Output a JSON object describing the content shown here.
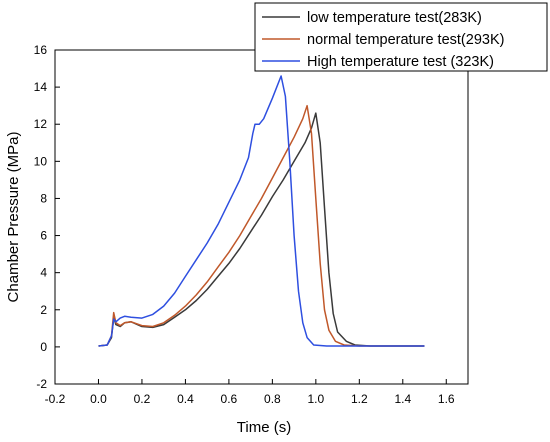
{
  "chart_data": {
    "type": "line",
    "xlabel": "Time (s)",
    "ylabel": "Chamber Pressure (MPa)",
    "xlim": [
      -0.2,
      1.7
    ],
    "ylim": [
      -2,
      16
    ],
    "x_ticks": [
      "-0.2",
      "0.0",
      "0.2",
      "0.4",
      "0.6",
      "0.8",
      "1.0",
      "1.2",
      "1.4",
      "1.6"
    ],
    "y_ticks": [
      "-2",
      "0",
      "2",
      "4",
      "6",
      "8",
      "10",
      "12",
      "14",
      "16"
    ],
    "legend_position": "top-right",
    "grid": false,
    "series": [
      {
        "name": "low temperature test(283K)",
        "color": "#3a3a3a",
        "points": [
          [
            0.0,
            0.05
          ],
          [
            0.04,
            0.1
          ],
          [
            0.06,
            0.5
          ],
          [
            0.07,
            1.6
          ],
          [
            0.08,
            1.2
          ],
          [
            0.1,
            1.1
          ],
          [
            0.12,
            1.3
          ],
          [
            0.15,
            1.35
          ],
          [
            0.2,
            1.1
          ],
          [
            0.25,
            1.05
          ],
          [
            0.3,
            1.2
          ],
          [
            0.35,
            1.6
          ],
          [
            0.4,
            2.0
          ],
          [
            0.45,
            2.5
          ],
          [
            0.5,
            3.1
          ],
          [
            0.55,
            3.8
          ],
          [
            0.6,
            4.5
          ],
          [
            0.65,
            5.3
          ],
          [
            0.7,
            6.2
          ],
          [
            0.75,
            7.1
          ],
          [
            0.8,
            8.1
          ],
          [
            0.85,
            9.0
          ],
          [
            0.9,
            10.0
          ],
          [
            0.95,
            11.0
          ],
          [
            0.98,
            11.8
          ],
          [
            1.0,
            12.6
          ],
          [
            1.02,
            11.0
          ],
          [
            1.04,
            7.5
          ],
          [
            1.06,
            4.0
          ],
          [
            1.08,
            1.8
          ],
          [
            1.1,
            0.8
          ],
          [
            1.14,
            0.3
          ],
          [
            1.18,
            0.1
          ],
          [
            1.25,
            0.05
          ],
          [
            1.5,
            0.05
          ]
        ]
      },
      {
        "name": "normal temperature test(293K)",
        "color": "#c0582a",
        "points": [
          [
            0.0,
            0.05
          ],
          [
            0.04,
            0.1
          ],
          [
            0.06,
            0.6
          ],
          [
            0.07,
            1.85
          ],
          [
            0.08,
            1.3
          ],
          [
            0.1,
            1.15
          ],
          [
            0.12,
            1.3
          ],
          [
            0.15,
            1.35
          ],
          [
            0.2,
            1.15
          ],
          [
            0.25,
            1.1
          ],
          [
            0.3,
            1.3
          ],
          [
            0.35,
            1.7
          ],
          [
            0.4,
            2.2
          ],
          [
            0.45,
            2.8
          ],
          [
            0.5,
            3.5
          ],
          [
            0.55,
            4.3
          ],
          [
            0.6,
            5.1
          ],
          [
            0.65,
            6.0
          ],
          [
            0.7,
            7.0
          ],
          [
            0.75,
            8.0
          ],
          [
            0.8,
            9.1
          ],
          [
            0.85,
            10.2
          ],
          [
            0.9,
            11.3
          ],
          [
            0.94,
            12.3
          ],
          [
            0.96,
            13.0
          ],
          [
            0.98,
            11.5
          ],
          [
            1.0,
            8.0
          ],
          [
            1.02,
            4.5
          ],
          [
            1.04,
            2.0
          ],
          [
            1.06,
            0.9
          ],
          [
            1.09,
            0.3
          ],
          [
            1.13,
            0.1
          ],
          [
            1.2,
            0.05
          ],
          [
            1.5,
            0.05
          ]
        ]
      },
      {
        "name": "High temperature test (323K)",
        "color": "#2e4fe0",
        "points": [
          [
            0.0,
            0.05
          ],
          [
            0.04,
            0.1
          ],
          [
            0.06,
            0.6
          ],
          [
            0.07,
            1.5
          ],
          [
            0.08,
            1.35
          ],
          [
            0.1,
            1.55
          ],
          [
            0.12,
            1.65
          ],
          [
            0.15,
            1.6
          ],
          [
            0.2,
            1.55
          ],
          [
            0.25,
            1.75
          ],
          [
            0.3,
            2.2
          ],
          [
            0.35,
            2.9
          ],
          [
            0.4,
            3.8
          ],
          [
            0.45,
            4.7
          ],
          [
            0.5,
            5.6
          ],
          [
            0.55,
            6.6
          ],
          [
            0.6,
            7.8
          ],
          [
            0.65,
            9.0
          ],
          [
            0.69,
            10.2
          ],
          [
            0.71,
            11.5
          ],
          [
            0.72,
            12.0
          ],
          [
            0.74,
            12.0
          ],
          [
            0.76,
            12.3
          ],
          [
            0.8,
            13.4
          ],
          [
            0.84,
            14.6
          ],
          [
            0.86,
            13.5
          ],
          [
            0.88,
            10.0
          ],
          [
            0.9,
            6.0
          ],
          [
            0.92,
            3.0
          ],
          [
            0.94,
            1.3
          ],
          [
            0.96,
            0.5
          ],
          [
            0.99,
            0.1
          ],
          [
            1.05,
            0.05
          ],
          [
            1.5,
            0.05
          ]
        ]
      }
    ]
  }
}
